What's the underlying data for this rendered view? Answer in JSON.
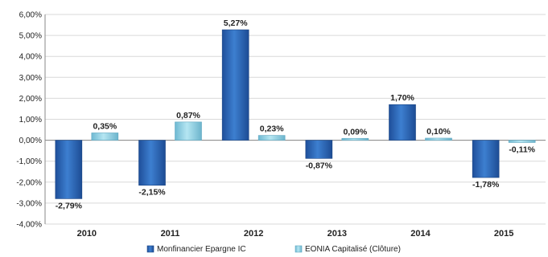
{
  "chart_data": {
    "type": "bar",
    "categories": [
      "2010",
      "2011",
      "2012",
      "2013",
      "2014",
      "2015"
    ],
    "series": [
      {
        "name": "Monfinancier Epargne IC",
        "values": [
          -2.79,
          -2.15,
          5.27,
          -0.87,
          1.7,
          -1.78
        ],
        "labels": [
          "-2,79%",
          "-2,15%",
          "5,27%",
          "-0,87%",
          "1,70%",
          "-1,78%"
        ],
        "color": "#2f6fc0"
      },
      {
        "name": "EONIA Capitalisé (Clôture)",
        "values": [
          0.35,
          0.87,
          0.23,
          0.09,
          0.1,
          -0.11
        ],
        "labels": [
          "0,35%",
          "0,87%",
          "0,23%",
          "0,09%",
          "0,10%",
          "-0,11%"
        ],
        "color": "#8ed2e6"
      }
    ],
    "ylim": [
      -4,
      6
    ],
    "yticks": [
      6,
      5,
      4,
      3,
      2,
      1,
      0,
      -1,
      -2,
      -3,
      -4
    ],
    "ytick_labels": [
      "6,00%",
      "5,00%",
      "4,00%",
      "3,00%",
      "2,00%",
      "1,00%",
      "0,00%",
      "-1,00%",
      "-2,00%",
      "-3,00%",
      "-4,00%"
    ],
    "grid": true,
    "legend": "bottom",
    "title": "",
    "xlabel": "",
    "ylabel": ""
  }
}
